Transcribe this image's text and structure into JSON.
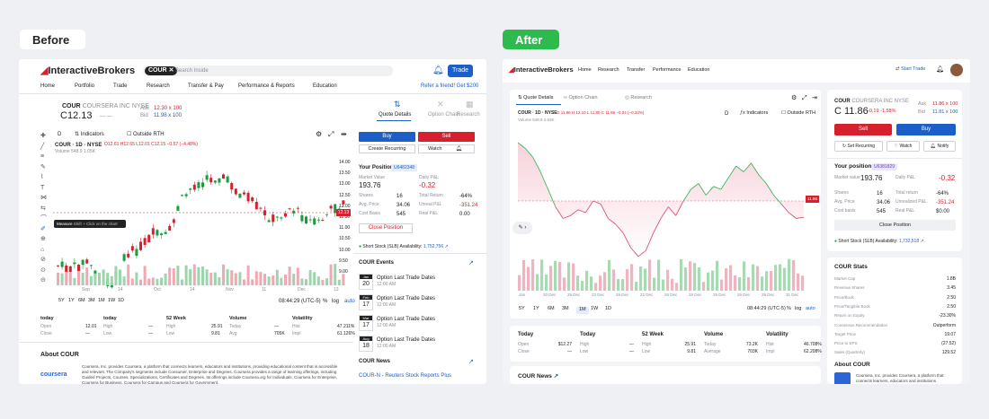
{
  "tags": {
    "before": "Before",
    "after": "After"
  },
  "brand": "InteractiveBrokers",
  "before": {
    "search_ticker": "COUR",
    "search_placeholder": "Search Inside",
    "trade": "Trade",
    "nav": [
      "Home",
      "Portfolio",
      "Trade",
      "Research",
      "Transfer & Pay",
      "Performance & Reports",
      "Education"
    ],
    "refer": "Refer a friend! Get $200",
    "symbol": "COUR",
    "company": "COURSERA INC",
    "exch": "NYSE",
    "price": "C12.13",
    "price_dash": "— —",
    "ask_l": "Ask",
    "ask": "12.30",
    "ask_sz": "x 100",
    "bid_l": "Bid",
    "bid": "11.98",
    "bid_sz": "x 100",
    "tabs": [
      "Quote Details",
      "Option Chain",
      "Research"
    ],
    "chart_head": "COUR · 1D · NYSE",
    "ohlc": "O12.61 H12.65 L12.01 C12.15 −0.57 (−4.48%)",
    "volume": "Volume 548.9 1.05K",
    "interval": "D",
    "indicators": "Indicators",
    "outside": "Outside RTH",
    "yaxis": [
      "14.00",
      "13.50",
      "13.00",
      "12.50",
      "12.00",
      "11.50",
      "11.00",
      "10.50",
      "10.00",
      "9.50",
      "9.00"
    ],
    "price_tag": "12.13",
    "xaxis": [
      "Sep",
      "14",
      "Oct",
      "14",
      "Nov",
      "11",
      "Dec",
      "13"
    ],
    "measure": "Measure",
    "measure_tip": "Shift + Click on the chart",
    "ranges": [
      "5Y",
      "1Y",
      "6M",
      "3M",
      "1M",
      "1W",
      "1D"
    ],
    "time": "08:44:29 (UTC-5)",
    "pct": "%",
    "log": "log",
    "auto": "auto",
    "buy": "Buy",
    "sell": "Sell",
    "create_rec": "Create Recurring",
    "watch": "Watch",
    "position_title": "Your Position",
    "acct": "U6482348",
    "mv_l": "Market Value",
    "mv": "193.76",
    "dpl_l": "Daily P&L",
    "dpl": "-0.32",
    "sh_l": "Shares",
    "sh": "16",
    "tr_l": "Total Return",
    "tr": "-64%",
    "ap_l": "Avg. Price",
    "ap": "34.06",
    "up_l": "Unreal P&L",
    "up": "-351.24",
    "cb_l": "Cost Basis",
    "cb": "545",
    "rp_l": "Real P&L",
    "rp": "0.00",
    "close_pos": "Close Position",
    "short": "Short Stock (SLB) Availability:",
    "short_val": "1,752,756",
    "events_title": "COUR Events",
    "events": [
      {
        "m": "Jan",
        "d": "20",
        "t": "Option Last Trade Dates",
        "s": "12:00 AM"
      },
      {
        "m": "Feb",
        "d": "17",
        "t": "Option Last Trade Dates",
        "s": "12:00 AM"
      },
      {
        "m": "Mar",
        "d": "17",
        "t": "Option Last Trade Dates",
        "s": "12:00 AM"
      },
      {
        "m": "Aug",
        "d": "18",
        "t": "Option Last Trade Dates",
        "s": "12:00 AM"
      }
    ],
    "news_title": "COUR News",
    "news_item": "COUR-N - Reuters Stock Reports Plus",
    "stats": [
      {
        "h": "today",
        "rows": [
          [
            "Open",
            "12.01"
          ],
          [
            "Close",
            "—"
          ]
        ]
      },
      {
        "h": "today",
        "rows": [
          [
            "High",
            "—"
          ],
          [
            "Low",
            "—"
          ]
        ]
      },
      {
        "h": "52 Week",
        "rows": [
          [
            "High",
            "25.91"
          ],
          [
            "Low",
            "9.81"
          ]
        ]
      },
      {
        "h": "Volume",
        "rows": [
          [
            "Today",
            "—"
          ],
          [
            "Avg",
            "705K"
          ]
        ]
      },
      {
        "h": "Volatility",
        "rows": [
          [
            "Hist",
            "47.211%"
          ],
          [
            "Impl",
            "61.126%"
          ]
        ]
      }
    ],
    "about_title": "About COUR",
    "about_logo": "coursera",
    "about_text": "Coursera, Inc. provides Coursera, a platform that connects learners, educators and institutions, providing educational content that is accessible and relevant. The Company's segments include Consumer, Enterprise and Degrees. Coursera provides a range of learning offerings, including Guided Projects, Courses, Specializations, Certificates and Degrees. Its offerings include Coursera.org for Individuals, Coursera for Enterprise, Coursera for Business, Coursera for Campus and Coursera for Government."
  },
  "after": {
    "nav": [
      "Home",
      "Research",
      "Transfer",
      "Performance",
      "Education"
    ],
    "start_trade": "Start Trade",
    "tabs": [
      "Quote Details",
      "Option Chain",
      "Research"
    ],
    "chart_head": "COUR · 1D · NYSE",
    "ohlc": "O 11.86 H 12.10 L 11.80 C 11.86 −0.04 (−0.34%)",
    "volume": "Volume 548.9 2.83K",
    "interval": "D",
    "indicators": "Indicators",
    "outside": "Outside RTH",
    "price_tag": "11.86",
    "xaxis": [
      "Jan",
      "20 Dec",
      "25 Dec",
      "23 Dec",
      "26 Dec",
      "22 Dec",
      "26 Dec",
      "28 Dec",
      "25 Dec",
      "26 Dec",
      "28 Dec",
      "31 Dec"
    ],
    "ranges": [
      "5Y",
      "1Y",
      "6M",
      "3M",
      "1M",
      "1W",
      "1D"
    ],
    "time": "08:44:29 (UTC-5)",
    "pct": "%",
    "log": "log",
    "auto": "auto",
    "symbol": "COUR",
    "company": "COURSERA INC",
    "exch": "NYSE",
    "price": "C 11.86",
    "chg": "-0.19",
    "chg_pct": "-1.58%",
    "ask_l": "Ask",
    "ask": "11.86",
    "ask_sz": "x 100",
    "bid_l": "Bid",
    "bid": "11.81",
    "bid_sz": "x 100",
    "sell": "Sell",
    "buy": "Buy",
    "set_rec": "Set Recurring",
    "watch": "Watch",
    "notify": "Notify",
    "position_title": "Your position",
    "acct": "U6381829",
    "mv_l": "Market value",
    "mv": "193.76",
    "dpl_l": "Daily P&L",
    "dpl": "-0.32",
    "sh_l": "Shares",
    "sh": "16",
    "tr_l": "Total return",
    "tr": "-64%",
    "ap_l": "Avg. Price",
    "ap": "34.06",
    "up_l": "Unrealized P&L",
    "up": "-351.24",
    "cb_l": "Cost basis",
    "cb": "545",
    "rp_l": "Real P&L",
    "rp": "$0.00",
    "close_pos": "Close Position",
    "short": "Short Stock (SLB) Availability:",
    "short_val": "1,732,518",
    "stats_title": "COUR Stats",
    "stats": [
      [
        "Market Cap",
        "1.8B"
      ],
      [
        "Revenue Shares",
        "3.45"
      ],
      [
        "Price/Book",
        "2.50"
      ],
      [
        "Price/Tangible Book",
        "2.50"
      ],
      [
        "Return on Equity",
        "-23.30%"
      ],
      [
        "Consensus Recommendation",
        "Outperform"
      ],
      [
        "Target Price",
        "19.07"
      ],
      [
        "Price to EPS",
        "(27.52)"
      ],
      [
        "Sales (Quarterly)",
        "129.52"
      ]
    ],
    "about_title": "About COUR",
    "about_text": "Coursera, Inc. provides Coursera, a platform that connects learners, educators and institutions",
    "bottom": [
      {
        "h": "Today",
        "rows": [
          [
            "Open",
            "$12.27"
          ],
          [
            "Close",
            "—"
          ]
        ]
      },
      {
        "h": "Today",
        "rows": [
          [
            "High",
            "—"
          ],
          [
            "Low",
            "—"
          ]
        ]
      },
      {
        "h": "52 Week",
        "rows": [
          [
            "High",
            "25.91"
          ],
          [
            "Low",
            "9.81"
          ]
        ]
      },
      {
        "h": "Volume",
        "rows": [
          [
            "Today",
            "73.2K"
          ],
          [
            "Average",
            "703K"
          ]
        ]
      },
      {
        "h": "Volatility",
        "rows": [
          [
            "Hist",
            "46.708%"
          ],
          [
            "Impl",
            "62.208%"
          ]
        ]
      }
    ],
    "news_title": "COUR News"
  }
}
